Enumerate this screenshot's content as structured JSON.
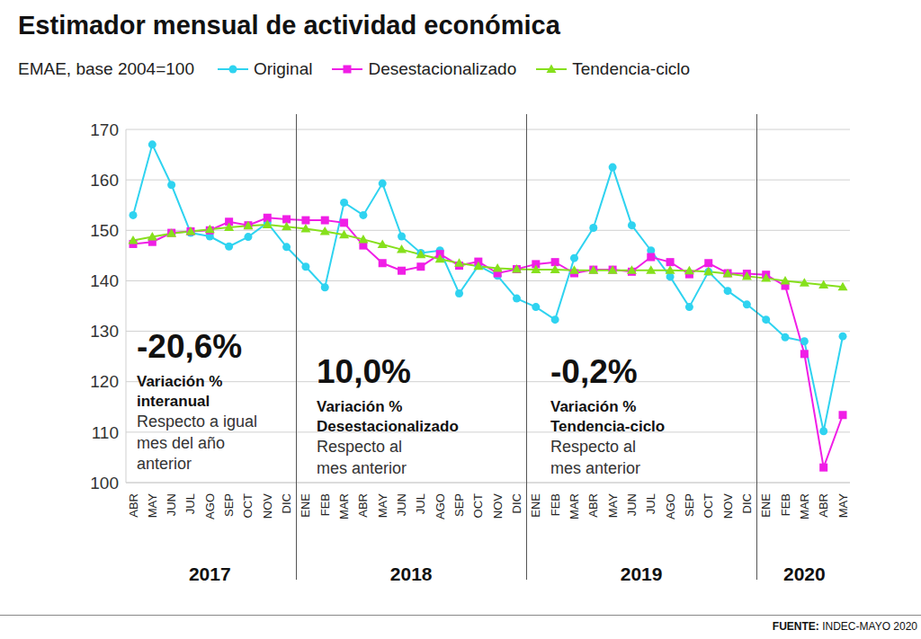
{
  "chart_data": {
    "type": "line",
    "title": "Estimador mensual de actividad económica",
    "subtitle": "EMAE, base 2004=100",
    "legend": "top",
    "grid": true,
    "categories": [
      "ABR",
      "MAY",
      "JUN",
      "JUL",
      "AGO",
      "SEP",
      "OCT",
      "NOV",
      "DIC",
      "ENE",
      "FEB",
      "MAR",
      "ABR",
      "MAY",
      "JUN",
      "JUL",
      "AGO",
      "SEP",
      "OCT",
      "NOV",
      "DIC",
      "ENE",
      "FEB",
      "MAR",
      "ABR",
      "MAY",
      "JUN",
      "JUL",
      "AGO",
      "SEP",
      "OCT",
      "NOV",
      "DIC",
      "ENE",
      "FEB",
      "MAR",
      "ABR",
      "MAY"
    ],
    "category_years": [
      "2017",
      "2017",
      "2017",
      "2017",
      "2017",
      "2017",
      "2017",
      "2017",
      "2017",
      "2018",
      "2018",
      "2018",
      "2018",
      "2018",
      "2018",
      "2018",
      "2018",
      "2018",
      "2018",
      "2018",
      "2018",
      "2019",
      "2019",
      "2019",
      "2019",
      "2019",
      "2019",
      "2019",
      "2019",
      "2019",
      "2019",
      "2019",
      "2019",
      "2020",
      "2020",
      "2020",
      "2020",
      "2020"
    ],
    "ylim": [
      100,
      170
    ],
    "yticks": [
      100,
      110,
      120,
      130,
      140,
      150,
      160,
      170
    ],
    "series": [
      {
        "name": "Original",
        "color": "#2fd3f0",
        "marker": "circle",
        "values": [
          153,
          167,
          159,
          149.5,
          148.8,
          146.8,
          148.7,
          151.5,
          146.7,
          142.8,
          138.7,
          155.5,
          153,
          159.3,
          148.8,
          145.5,
          146,
          137.5,
          143,
          141,
          136.5,
          134.8,
          132.3,
          144.5,
          150.5,
          162.5,
          151,
          146,
          140.8,
          134.8,
          141.8,
          138,
          135.3,
          132.3,
          128.8,
          128,
          110.2,
          129
        ]
      },
      {
        "name": "Desestacionalizado",
        "color": "#f01ee6",
        "marker": "square",
        "values": [
          147.3,
          147.7,
          149.5,
          149.8,
          150,
          151.7,
          151,
          152.5,
          152.2,
          152,
          152,
          151.5,
          147,
          143.5,
          142,
          142.8,
          145.3,
          143,
          143.8,
          141.5,
          142.3,
          143.3,
          143.7,
          141.5,
          142.2,
          142.2,
          141.8,
          144.7,
          143.7,
          141.3,
          143.5,
          141.5,
          141.4,
          141.2,
          139,
          125.5,
          103,
          113.4
        ]
      },
      {
        "name": "Tendencia-ciclo",
        "color": "#86e01c",
        "marker": "triangle",
        "values": [
          148,
          148.7,
          149.4,
          149.8,
          150.2,
          150.6,
          150.9,
          151.1,
          150.7,
          150.3,
          149.8,
          149.1,
          148.2,
          147.2,
          146.2,
          145.2,
          144.3,
          143.5,
          142.9,
          142.5,
          142.3,
          142.2,
          142.2,
          142.1,
          142.1,
          142.1,
          142.1,
          142.1,
          142.1,
          142,
          141.8,
          141.4,
          140.9,
          140.5,
          140,
          139.6,
          139.2,
          138.8
        ]
      }
    ],
    "annotations": [
      {
        "value": -20.6,
        "value_label": "-20,6%",
        "label_lines": [
          "Variación %",
          "interanual"
        ],
        "note_lines": [
          "Respecto a igual",
          "mes del año",
          "anterior"
        ]
      },
      {
        "value": 10.0,
        "value_label": "10,0%",
        "label_lines": [
          "Variación %",
          "Desestacionalizado"
        ],
        "note_lines": [
          "Respecto al",
          "mes anterior"
        ]
      },
      {
        "value": -0.2,
        "value_label": "-0,2%",
        "label_lines": [
          "Variación %",
          "Tendencia-ciclo"
        ],
        "note_lines": [
          "Respecto al",
          "mes anterior"
        ]
      }
    ],
    "source_label": "FUENTE:",
    "source": "INDEC-MAYO 2020"
  }
}
